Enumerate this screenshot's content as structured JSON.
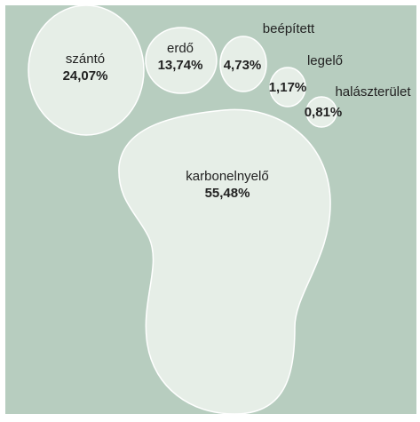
{
  "colors": {
    "background": "#b7cdbf",
    "shape_fill": "#e6eee7",
    "shape_stroke": "#ffffff",
    "text": "#222222"
  },
  "segments": [
    {
      "name": "szántó",
      "value": "24,07%",
      "percent": 24.07
    },
    {
      "name": "erdő",
      "value": "13,74%",
      "percent": 13.74
    },
    {
      "name": "beépített",
      "value": "4,73%",
      "percent": 4.73
    },
    {
      "name": "legelő",
      "value": "1,17%",
      "percent": 1.17
    },
    {
      "name": "halászterület",
      "value": "0,81%",
      "percent": 0.81
    },
    {
      "name": "karbonelnyelő",
      "value": "55,48%",
      "percent": 55.48
    }
  ]
}
